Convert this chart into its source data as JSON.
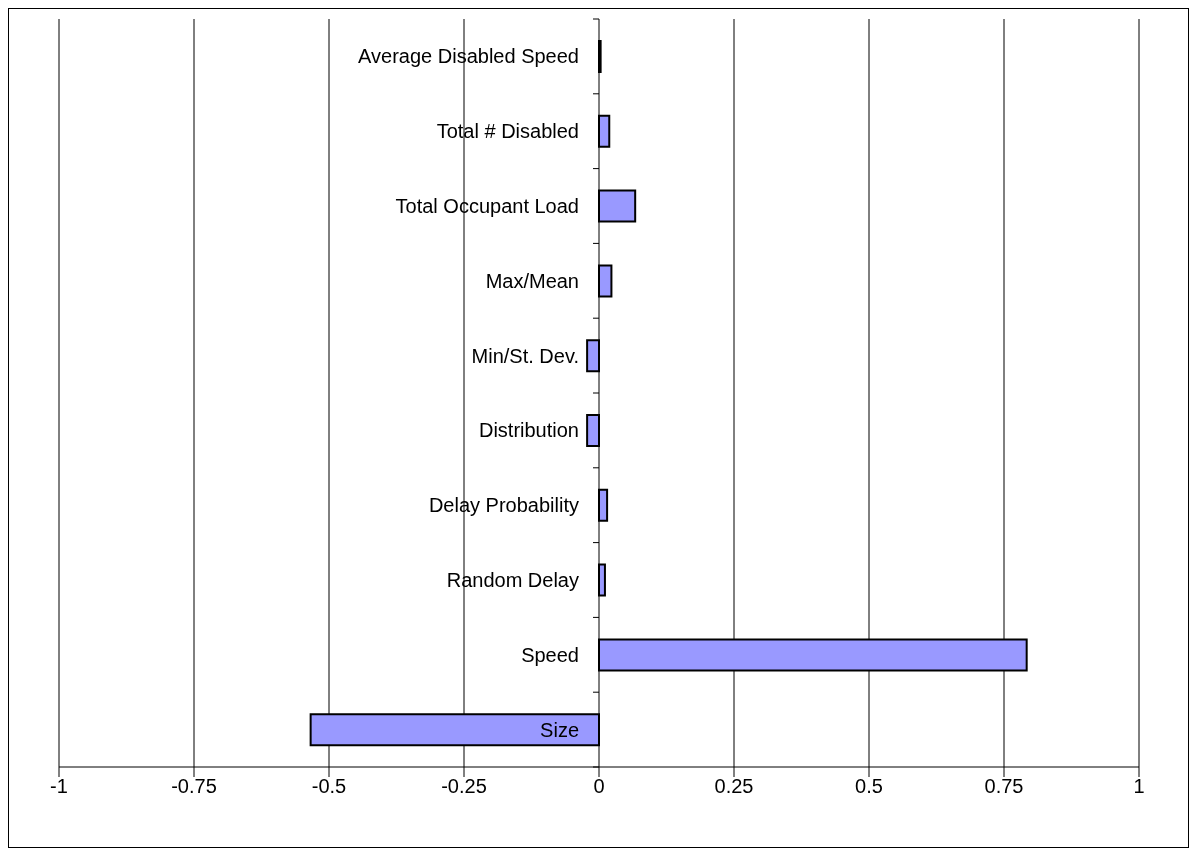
{
  "chart_data": {
    "type": "bar",
    "orientation": "horizontal",
    "categories": [
      "Average Disabled Speed",
      "Total # Disabled",
      "Total Occupant Load",
      "Max/Mean",
      "Min/St. Dev.",
      "Distribution",
      "Delay Probability",
      "Random Delay",
      "Speed",
      "Size"
    ],
    "values": [
      0.003,
      0.019,
      0.067,
      0.023,
      -0.022,
      -0.022,
      0.015,
      0.011,
      0.792,
      -0.534
    ],
    "color": "#9999ff",
    "xlim": [
      -1,
      1
    ],
    "xticks": [
      -1,
      -0.75,
      -0.5,
      -0.25,
      0,
      0.25,
      0.5,
      0.75,
      1
    ],
    "grid": "x"
  }
}
